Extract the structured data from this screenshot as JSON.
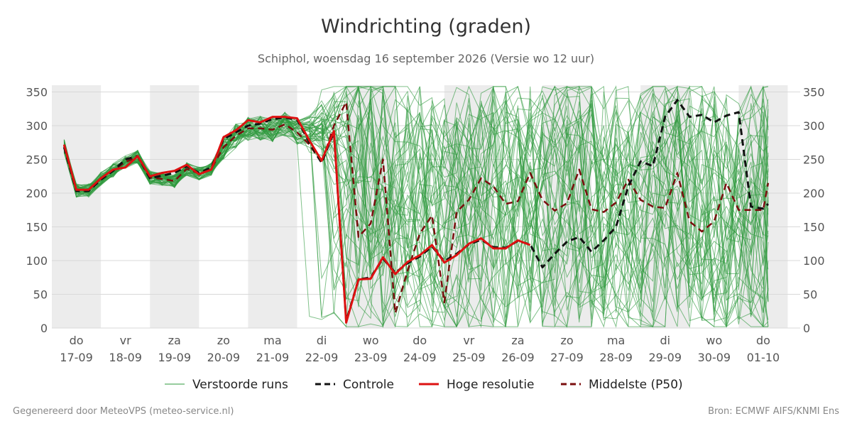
{
  "header": {
    "title": "Windrichting (graden)",
    "subtitle": "Schiphol, woensdag 16 september 2026 (Versie wo 12 uur)"
  },
  "footer": {
    "left": "Gegenereerd door MeteoVPS (meteo-service.nl)",
    "right": "Bron: ECMWF AIFS/KNMI Ens"
  },
  "colors": {
    "ensemble": "#2e9a3e",
    "control": "#111111",
    "hires": "#dd1111",
    "median": "#7a0e0e",
    "shade": "#ececec",
    "grid": "#d9d9d9"
  },
  "chart_data": {
    "type": "line",
    "ylim": [
      0,
      360
    ],
    "yticks": [
      0,
      50,
      100,
      150,
      200,
      250,
      300,
      350
    ],
    "y_axis_both_sides": true,
    "x_range_days": [
      16.75,
      31.1
    ],
    "x_unit": "day of month (september); 31 = 01-10",
    "day_ticks": [
      {
        "x": 17,
        "dow": "do",
        "date": "17-09"
      },
      {
        "x": 18,
        "dow": "vr",
        "date": "18-09"
      },
      {
        "x": 19,
        "dow": "za",
        "date": "19-09"
      },
      {
        "x": 20,
        "dow": "zo",
        "date": "20-09"
      },
      {
        "x": 21,
        "dow": "ma",
        "date": "21-09"
      },
      {
        "x": 22,
        "dow": "di",
        "date": "22-09"
      },
      {
        "x": 23,
        "dow": "wo",
        "date": "23-09"
      },
      {
        "x": 24,
        "dow": "do",
        "date": "24-09"
      },
      {
        "x": 25,
        "dow": "vr",
        "date": "25-09"
      },
      {
        "x": 26,
        "dow": "za",
        "date": "26-09"
      },
      {
        "x": 27,
        "dow": "zo",
        "date": "27-09"
      },
      {
        "x": 28,
        "dow": "ma",
        "date": "28-09"
      },
      {
        "x": 29,
        "dow": "di",
        "date": "29-09"
      },
      {
        "x": 30,
        "dow": "wo",
        "date": "30-09"
      },
      {
        "x": 31,
        "dow": "do",
        "date": "01-10"
      }
    ],
    "shaded_days": [
      17,
      19,
      21,
      23,
      25,
      27,
      29,
      31
    ],
    "legend": {
      "placement": "bottom",
      "items": [
        {
          "key": "ensemble",
          "label": "Verstoorde runs",
          "style": "thin"
        },
        {
          "key": "control",
          "label": "Controle",
          "style": "dashed"
        },
        {
          "key": "hires",
          "label": "Hoge resolutie",
          "style": "solid"
        },
        {
          "key": "median",
          "label": "Middelste (P50)",
          "style": "dashed"
        }
      ]
    },
    "series": [
      {
        "name": "Hoge resolutie",
        "key": "hires",
        "x": [
          16.75,
          17.0,
          17.25,
          17.5,
          17.75,
          18.0,
          18.25,
          18.5,
          18.75,
          19.0,
          19.25,
          19.5,
          19.75,
          20.0,
          20.25,
          20.5,
          20.75,
          21.0,
          21.25,
          21.5,
          21.75,
          22.0,
          22.25,
          22.5,
          22.75,
          23.0,
          23.25,
          23.5,
          23.75,
          24.0,
          24.25,
          24.5,
          24.75,
          25.0,
          25.25,
          25.5,
          25.75,
          26.0,
          26.25,
          26.5
        ],
        "values": [
          272,
          205,
          205,
          222,
          235,
          238,
          255,
          225,
          230,
          233,
          242,
          228,
          235,
          283,
          293,
          308,
          305,
          313,
          313,
          311,
          278,
          248,
          292,
          8,
          72,
          73,
          105,
          80,
          98,
          108,
          123,
          97,
          108,
          125,
          133,
          118,
          118,
          130,
          123,
          null
        ]
      },
      {
        "name": "Controle",
        "key": "control",
        "x": [
          16.75,
          17.0,
          17.25,
          17.5,
          17.75,
          18.0,
          18.25,
          18.5,
          18.75,
          19.0,
          19.25,
          19.5,
          19.75,
          20.0,
          20.25,
          20.5,
          20.75,
          21.0,
          21.25,
          21.5,
          21.75,
          22.0,
          22.25,
          22.5,
          22.75,
          23.0,
          23.25,
          23.5,
          23.75,
          24.0,
          24.25,
          24.5,
          24.75,
          25.0,
          25.25,
          25.5,
          25.75,
          26.0,
          26.25,
          26.5,
          26.75,
          27.0,
          27.25,
          27.5,
          27.75,
          28.0,
          28.25,
          28.5,
          28.75,
          29.0,
          29.25,
          29.5,
          29.75,
          30.0,
          30.25,
          30.5,
          30.75,
          31.0,
          31.1
        ],
        "values": [
          268,
          203,
          203,
          220,
          233,
          250,
          255,
          222,
          226,
          230,
          240,
          230,
          238,
          280,
          290,
          300,
          303,
          310,
          312,
          309,
          275,
          245,
          290,
          10,
          72,
          75,
          103,
          82,
          96,
          106,
          121,
          99,
          110,
          124,
          131,
          120,
          119,
          129,
          124,
          90,
          110,
          128,
          135,
          113,
          130,
          150,
          210,
          247,
          240,
          313,
          338,
          313,
          316,
          305,
          315,
          320,
          180,
          177,
          184
        ]
      },
      {
        "name": "Middelste (P50)",
        "key": "median",
        "x": [
          16.75,
          17.0,
          17.25,
          17.5,
          17.75,
          18.0,
          18.25,
          18.5,
          18.75,
          19.0,
          19.25,
          19.5,
          19.75,
          20.0,
          20.25,
          20.5,
          20.75,
          21.0,
          21.25,
          21.5,
          21.75,
          22.0,
          22.25,
          22.5,
          22.75,
          23.0,
          23.25,
          23.5,
          23.75,
          24.0,
          24.25,
          24.5,
          24.75,
          25.0,
          25.25,
          25.5,
          25.75,
          26.0,
          26.25,
          26.5,
          26.75,
          27.0,
          27.25,
          27.5,
          27.75,
          28.0,
          28.25,
          28.5,
          28.75,
          29.0,
          29.25,
          29.5,
          29.75,
          30.0,
          30.25,
          30.5,
          30.75,
          31.0,
          31.1
        ],
        "values": [
          270,
          204,
          204,
          221,
          234,
          246,
          254,
          223,
          221,
          218,
          236,
          229,
          236,
          268,
          285,
          296,
          296,
          294,
          302,
          290,
          272,
          245,
          300,
          335,
          135,
          155,
          250,
          22,
          85,
          140,
          167,
          38,
          172,
          190,
          222,
          210,
          184,
          188,
          230,
          190,
          174,
          185,
          235,
          176,
          172,
          186,
          220,
          190,
          180,
          178,
          230,
          158,
          143,
          158,
          215,
          175,
          175,
          175,
          215
        ]
      }
    ]
  }
}
